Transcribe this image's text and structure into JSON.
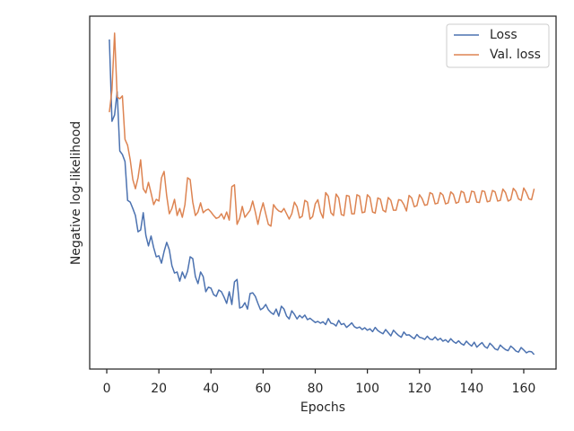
{
  "chart_data": {
    "type": "line",
    "xlabel": "Epochs",
    "ylabel": "Negative log-likelihood",
    "xlim": [
      -6.55,
      172.4
    ],
    "xticks": [
      0,
      20,
      40,
      60,
      80,
      100,
      120,
      140,
      160
    ],
    "ylim": [
      0,
      100
    ],
    "legend": "upper right",
    "x": [
      1,
      2,
      3,
      4,
      5,
      6,
      7,
      8,
      9,
      10,
      11,
      12,
      13,
      14,
      15,
      16,
      17,
      18,
      19,
      20,
      21,
      22,
      23,
      24,
      25,
      26,
      27,
      28,
      29,
      30,
      31,
      32,
      33,
      34,
      35,
      36,
      37,
      38,
      39,
      40,
      41,
      42,
      43,
      44,
      45,
      46,
      47,
      48,
      49,
      50,
      51,
      52,
      53,
      54,
      55,
      56,
      57,
      58,
      59,
      60,
      61,
      62,
      63,
      64,
      65,
      66,
      67,
      68,
      69,
      70,
      71,
      72,
      73,
      74,
      75,
      76,
      77,
      78,
      79,
      80,
      81,
      82,
      83,
      84,
      85,
      86,
      87,
      88,
      89,
      90,
      91,
      92,
      93,
      94,
      95,
      96,
      97,
      98,
      99,
      100,
      101,
      102,
      103,
      104,
      105,
      106,
      107,
      108,
      109,
      110,
      111,
      112,
      113,
      114,
      115,
      116,
      117,
      118,
      119,
      120,
      121,
      122,
      123,
      124,
      125,
      126,
      127,
      128,
      129,
      130,
      131,
      132,
      133,
      134,
      135,
      136,
      137,
      138,
      139,
      140,
      141,
      142,
      143,
      144,
      145,
      146,
      147,
      148,
      149,
      150,
      151,
      152,
      153,
      154,
      155,
      156,
      157,
      158,
      159,
      160,
      161,
      162,
      163,
      164
    ],
    "series": [
      {
        "name": "Loss",
        "color": "#4c72b0",
        "values": [
          93.4,
          70.2,
          72,
          78.6,
          61.8,
          60.8,
          58.8,
          47.8,
          47.3,
          45.5,
          43.5,
          38.9,
          39.4,
          44.3,
          37.9,
          34.9,
          37.7,
          34.4,
          31.8,
          32.1,
          30,
          33.3,
          35.9,
          33.8,
          29.3,
          27.2,
          27.5,
          24.9,
          27.5,
          25.7,
          27.7,
          31.8,
          31.3,
          26.2,
          24.2,
          27.5,
          26.2,
          21.9,
          23.2,
          22.9,
          21.1,
          20.6,
          22.4,
          21.9,
          20.4,
          18.6,
          21.9,
          18.3,
          24.7,
          25.4,
          17.3,
          17.6,
          18.8,
          17,
          21.4,
          21.6,
          20.6,
          18.6,
          16.8,
          17.3,
          18.3,
          16.8,
          16,
          15.5,
          17,
          15,
          17.8,
          17,
          15,
          14.2,
          16.5,
          15.5,
          14.2,
          15.2,
          14.5,
          15.3,
          14.0,
          14.4,
          13.8,
          13.2,
          13.5,
          13.0,
          13.4,
          12.6,
          14.3,
          13.0,
          12.8,
          12.2,
          13.8,
          12.6,
          12.9,
          11.8,
          12.4,
          13.1,
          12.0,
          11.6,
          11.9,
          11.2,
          11.7,
          11.0,
          11.4,
          10.6,
          11.8,
          10.9,
          10.4,
          10.0,
          11.2,
          10.3,
          9.4,
          11.0,
          10.2,
          9.5,
          9.0,
          10.5,
          9.6,
          9.7,
          9.1,
          8.6,
          9.8,
          9.0,
          8.8,
          8.4,
          9.3,
          8.5,
          8.3,
          9.1,
          8.2,
          8.7,
          7.9,
          8.3,
          7.6,
          8.6,
          7.8,
          7.3,
          8.0,
          7.2,
          6.8,
          7.9,
          7.1,
          6.5,
          7.6,
          6.2,
          6.9,
          7.5,
          6.4,
          5.9,
          7.3,
          6.6,
          5.7,
          5.4,
          6.8,
          6.1,
          5.5,
          5.2,
          6.5,
          5.9,
          5.1,
          4.8,
          6.1,
          5.4,
          4.6,
          5.0,
          4.9,
          4.1
        ]
      },
      {
        "name": "Val. loss",
        "color": "#dd8452",
        "values": [
          72.8,
          79.1,
          95.2,
          77.1,
          76.6,
          77.4,
          65.1,
          63.4,
          59.3,
          53.7,
          51.1,
          54.2,
          59.3,
          51.1,
          49.9,
          52.9,
          49.9,
          46.6,
          48.1,
          47.6,
          54.2,
          56,
          49.1,
          44,
          45.5,
          48.1,
          43.5,
          45.5,
          43,
          46.6,
          54.2,
          53.7,
          47.3,
          43.5,
          44.5,
          47.1,
          44.3,
          45,
          45.3,
          44.5,
          43.5,
          42.7,
          43,
          44,
          42.5,
          44.5,
          42.2,
          51.7,
          52.2,
          41,
          42.7,
          46.1,
          43,
          44,
          45,
          47.6,
          44.5,
          41,
          44.5,
          47.1,
          44,
          41,
          40.5,
          46.6,
          45.5,
          44.8,
          44.5,
          45.5,
          44,
          42.5,
          44.0,
          47.3,
          46.0,
          42.8,
          43.3,
          47.8,
          47.3,
          42.5,
          43.2,
          46.8,
          48.0,
          44.5,
          42.8,
          50.0,
          49.0,
          44.3,
          43.5,
          49.6,
          48.5,
          43.8,
          43.5,
          49.2,
          49.0,
          44.0,
          44.0,
          49.4,
          49.0,
          44.3,
          44.5,
          49.4,
          48.6,
          44.5,
          44.2,
          48.5,
          48.1,
          45.0,
          44.5,
          48.6,
          47.8,
          45.0,
          45.0,
          48.0,
          47.8,
          46.6,
          44.8,
          49.2,
          48.5,
          46.0,
          46.3,
          49.4,
          48.3,
          46.4,
          46.6,
          50.0,
          49.6,
          46.8,
          47.0,
          50.0,
          49.3,
          46.8,
          47.1,
          50.2,
          49.5,
          47.0,
          47.3,
          50.4,
          50.0,
          47.2,
          47.4,
          50.4,
          50.2,
          47.3,
          47.2,
          50.5,
          50.3,
          47.4,
          47.6,
          50.6,
          50.2,
          47.6,
          47.8,
          51.0,
          50.0,
          47.6,
          48.0,
          51.2,
          50.3,
          48.2,
          47.8,
          51.3,
          50.0,
          48.2,
          48.0,
          51.1
        ]
      }
    ]
  }
}
